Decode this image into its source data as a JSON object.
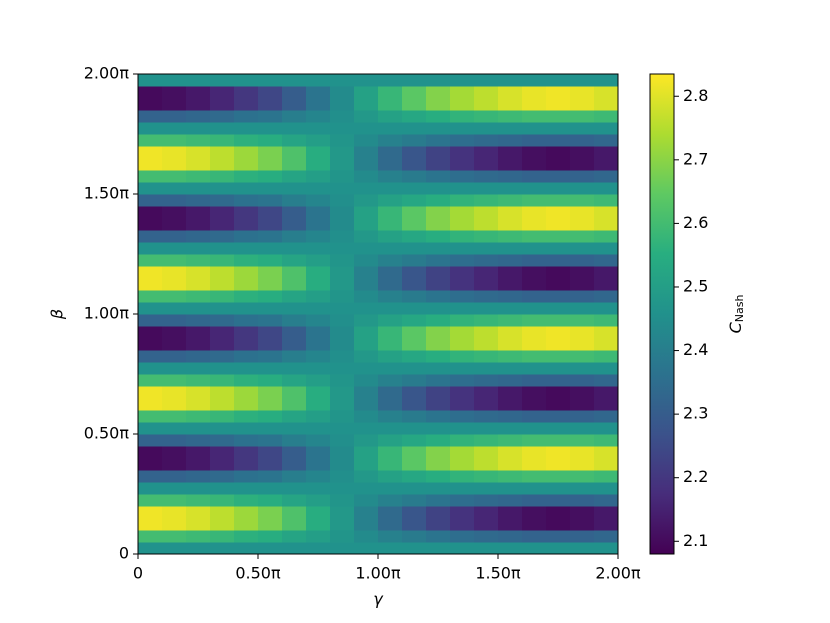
{
  "chart_data": {
    "type": "heatmap",
    "colormap": "viridis",
    "xlabel": "γ",
    "ylabel": "β",
    "colorbar_label": "C",
    "colorbar_label_sub": "Nash",
    "xlim": [
      0,
      2
    ],
    "ylim": [
      0,
      2
    ],
    "xticks": [
      {
        "value": 0,
        "label": "0"
      },
      {
        "value": 0.5,
        "label": "0.50π"
      },
      {
        "value": 1,
        "label": "1.00π"
      },
      {
        "value": 1.5,
        "label": "1.50π"
      },
      {
        "value": 2,
        "label": "2.00π"
      }
    ],
    "yticks": [
      {
        "value": 0,
        "label": "0"
      },
      {
        "value": 0.5,
        "label": "0.50π"
      },
      {
        "value": 1,
        "label": "1.00π"
      },
      {
        "value": 1.5,
        "label": "1.50π"
      },
      {
        "value": 2,
        "label": "2.00π"
      }
    ],
    "zlim": [
      2.08,
      2.835
    ],
    "zticks": [
      2.1,
      2.2,
      2.3,
      2.4,
      2.5,
      2.6,
      2.7,
      2.8
    ],
    "z": [
      [
        2.46,
        2.46,
        2.46,
        2.46,
        2.46,
        2.46,
        2.46,
        2.46,
        2.46,
        2.46,
        2.46,
        2.46,
        2.46,
        2.46,
        2.46,
        2.46,
        2.46,
        2.46,
        2.46,
        2.46
      ],
      [
        2.6,
        2.6,
        2.59,
        2.58,
        2.56,
        2.55,
        2.52,
        2.5,
        2.47,
        2.44,
        2.41,
        2.39,
        2.37,
        2.35,
        2.34,
        2.33,
        2.32,
        2.32,
        2.32,
        2.33
      ],
      [
        2.82,
        2.81,
        2.79,
        2.76,
        2.72,
        2.68,
        2.62,
        2.55,
        2.48,
        2.41,
        2.34,
        2.28,
        2.23,
        2.19,
        2.16,
        2.13,
        2.11,
        2.1,
        2.11,
        2.13
      ],
      [
        2.82,
        2.81,
        2.79,
        2.76,
        2.72,
        2.68,
        2.62,
        2.55,
        2.48,
        2.41,
        2.34,
        2.28,
        2.23,
        2.19,
        2.16,
        2.13,
        2.11,
        2.1,
        2.11,
        2.13
      ],
      [
        2.6,
        2.6,
        2.59,
        2.58,
        2.56,
        2.55,
        2.52,
        2.5,
        2.47,
        2.44,
        2.41,
        2.39,
        2.37,
        2.35,
        2.34,
        2.33,
        2.32,
        2.32,
        2.32,
        2.33
      ],
      [
        2.46,
        2.46,
        2.46,
        2.46,
        2.46,
        2.46,
        2.46,
        2.46,
        2.46,
        2.46,
        2.46,
        2.46,
        2.46,
        2.46,
        2.46,
        2.46,
        2.46,
        2.46,
        2.46,
        2.46
      ],
      [
        2.32,
        2.32,
        2.33,
        2.34,
        2.36,
        2.37,
        2.4,
        2.42,
        2.45,
        2.48,
        2.51,
        2.53,
        2.55,
        2.57,
        2.58,
        2.59,
        2.6,
        2.6,
        2.6,
        2.59
      ],
      [
        2.1,
        2.11,
        2.13,
        2.16,
        2.2,
        2.24,
        2.3,
        2.37,
        2.44,
        2.51,
        2.58,
        2.64,
        2.69,
        2.73,
        2.76,
        2.79,
        2.81,
        2.82,
        2.81,
        2.79
      ],
      [
        2.1,
        2.11,
        2.13,
        2.16,
        2.2,
        2.24,
        2.3,
        2.37,
        2.44,
        2.51,
        2.58,
        2.64,
        2.69,
        2.73,
        2.76,
        2.79,
        2.81,
        2.82,
        2.81,
        2.79
      ],
      [
        2.32,
        2.32,
        2.33,
        2.34,
        2.36,
        2.37,
        2.4,
        2.42,
        2.45,
        2.48,
        2.51,
        2.53,
        2.55,
        2.57,
        2.58,
        2.59,
        2.6,
        2.6,
        2.6,
        2.59
      ],
      [
        2.46,
        2.46,
        2.46,
        2.46,
        2.46,
        2.46,
        2.46,
        2.46,
        2.46,
        2.46,
        2.46,
        2.46,
        2.46,
        2.46,
        2.46,
        2.46,
        2.46,
        2.46,
        2.46,
        2.46
      ],
      [
        2.6,
        2.6,
        2.59,
        2.58,
        2.56,
        2.55,
        2.52,
        2.5,
        2.47,
        2.44,
        2.41,
        2.39,
        2.37,
        2.35,
        2.34,
        2.33,
        2.32,
        2.32,
        2.32,
        2.33
      ],
      [
        2.82,
        2.81,
        2.79,
        2.76,
        2.72,
        2.68,
        2.62,
        2.55,
        2.48,
        2.41,
        2.34,
        2.28,
        2.23,
        2.19,
        2.16,
        2.13,
        2.11,
        2.1,
        2.11,
        2.13
      ],
      [
        2.82,
        2.81,
        2.79,
        2.76,
        2.72,
        2.68,
        2.62,
        2.55,
        2.48,
        2.41,
        2.34,
        2.28,
        2.23,
        2.19,
        2.16,
        2.13,
        2.11,
        2.1,
        2.11,
        2.13
      ],
      [
        2.6,
        2.6,
        2.59,
        2.58,
        2.56,
        2.55,
        2.52,
        2.5,
        2.47,
        2.44,
        2.41,
        2.39,
        2.37,
        2.35,
        2.34,
        2.33,
        2.32,
        2.32,
        2.32,
        2.33
      ],
      [
        2.46,
        2.46,
        2.46,
        2.46,
        2.46,
        2.46,
        2.46,
        2.46,
        2.46,
        2.46,
        2.46,
        2.46,
        2.46,
        2.46,
        2.46,
        2.46,
        2.46,
        2.46,
        2.46,
        2.46
      ],
      [
        2.32,
        2.32,
        2.33,
        2.34,
        2.36,
        2.37,
        2.4,
        2.42,
        2.45,
        2.48,
        2.51,
        2.53,
        2.55,
        2.57,
        2.58,
        2.59,
        2.6,
        2.6,
        2.6,
        2.59
      ],
      [
        2.1,
        2.11,
        2.13,
        2.16,
        2.2,
        2.24,
        2.3,
        2.37,
        2.44,
        2.51,
        2.58,
        2.64,
        2.69,
        2.73,
        2.76,
        2.79,
        2.81,
        2.82,
        2.81,
        2.79
      ],
      [
        2.1,
        2.11,
        2.13,
        2.16,
        2.2,
        2.24,
        2.3,
        2.37,
        2.44,
        2.51,
        2.58,
        2.64,
        2.69,
        2.73,
        2.76,
        2.79,
        2.81,
        2.82,
        2.81,
        2.79
      ],
      [
        2.32,
        2.32,
        2.33,
        2.34,
        2.36,
        2.37,
        2.4,
        2.42,
        2.45,
        2.48,
        2.51,
        2.53,
        2.55,
        2.57,
        2.58,
        2.59,
        2.6,
        2.6,
        2.6,
        2.59
      ],
      [
        2.46,
        2.46,
        2.46,
        2.46,
        2.46,
        2.46,
        2.46,
        2.46,
        2.46,
        2.46,
        2.46,
        2.46,
        2.46,
        2.46,
        2.46,
        2.46,
        2.46,
        2.46,
        2.46,
        2.46
      ],
      [
        2.6,
        2.6,
        2.59,
        2.58,
        2.56,
        2.55,
        2.52,
        2.5,
        2.47,
        2.44,
        2.41,
        2.39,
        2.37,
        2.35,
        2.34,
        2.33,
        2.32,
        2.32,
        2.32,
        2.33
      ],
      [
        2.82,
        2.81,
        2.79,
        2.76,
        2.72,
        2.68,
        2.62,
        2.55,
        2.48,
        2.41,
        2.34,
        2.28,
        2.23,
        2.19,
        2.16,
        2.13,
        2.11,
        2.1,
        2.11,
        2.13
      ],
      [
        2.82,
        2.81,
        2.79,
        2.76,
        2.72,
        2.68,
        2.62,
        2.55,
        2.48,
        2.41,
        2.34,
        2.28,
        2.23,
        2.19,
        2.16,
        2.13,
        2.11,
        2.1,
        2.11,
        2.13
      ],
      [
        2.6,
        2.6,
        2.59,
        2.58,
        2.56,
        2.55,
        2.52,
        2.5,
        2.47,
        2.44,
        2.41,
        2.39,
        2.37,
        2.35,
        2.34,
        2.33,
        2.32,
        2.32,
        2.32,
        2.33
      ],
      [
        2.46,
        2.46,
        2.46,
        2.46,
        2.46,
        2.46,
        2.46,
        2.46,
        2.46,
        2.46,
        2.46,
        2.46,
        2.46,
        2.46,
        2.46,
        2.46,
        2.46,
        2.46,
        2.46,
        2.46
      ],
      [
        2.32,
        2.32,
        2.33,
        2.34,
        2.36,
        2.37,
        2.4,
        2.42,
        2.45,
        2.48,
        2.51,
        2.53,
        2.55,
        2.57,
        2.58,
        2.59,
        2.6,
        2.6,
        2.6,
        2.59
      ],
      [
        2.1,
        2.11,
        2.13,
        2.16,
        2.2,
        2.24,
        2.3,
        2.37,
        2.44,
        2.51,
        2.58,
        2.64,
        2.69,
        2.73,
        2.76,
        2.79,
        2.81,
        2.82,
        2.81,
        2.79
      ],
      [
        2.1,
        2.11,
        2.13,
        2.16,
        2.2,
        2.24,
        2.3,
        2.37,
        2.44,
        2.51,
        2.58,
        2.64,
        2.69,
        2.73,
        2.76,
        2.79,
        2.81,
        2.82,
        2.81,
        2.79
      ],
      [
        2.32,
        2.32,
        2.33,
        2.34,
        2.36,
        2.37,
        2.4,
        2.42,
        2.45,
        2.48,
        2.51,
        2.53,
        2.55,
        2.57,
        2.58,
        2.59,
        2.6,
        2.6,
        2.6,
        2.59
      ],
      [
        2.46,
        2.46,
        2.46,
        2.46,
        2.46,
        2.46,
        2.46,
        2.46,
        2.46,
        2.46,
        2.46,
        2.46,
        2.46,
        2.46,
        2.46,
        2.46,
        2.46,
        2.46,
        2.46,
        2.46
      ],
      [
        2.6,
        2.6,
        2.59,
        2.58,
        2.56,
        2.55,
        2.52,
        2.5,
        2.47,
        2.44,
        2.41,
        2.39,
        2.37,
        2.35,
        2.34,
        2.33,
        2.32,
        2.32,
        2.32,
        2.33
      ],
      [
        2.82,
        2.81,
        2.79,
        2.76,
        2.72,
        2.68,
        2.62,
        2.55,
        2.48,
        2.41,
        2.34,
        2.28,
        2.23,
        2.19,
        2.16,
        2.13,
        2.11,
        2.1,
        2.11,
        2.13
      ],
      [
        2.82,
        2.81,
        2.79,
        2.76,
        2.72,
        2.68,
        2.62,
        2.55,
        2.48,
        2.41,
        2.34,
        2.28,
        2.23,
        2.19,
        2.16,
        2.13,
        2.11,
        2.1,
        2.11,
        2.13
      ],
      [
        2.6,
        2.6,
        2.59,
        2.58,
        2.56,
        2.55,
        2.52,
        2.5,
        2.47,
        2.44,
        2.41,
        2.39,
        2.37,
        2.35,
        2.34,
        2.33,
        2.32,
        2.32,
        2.32,
        2.33
      ],
      [
        2.46,
        2.46,
        2.46,
        2.46,
        2.46,
        2.46,
        2.46,
        2.46,
        2.46,
        2.46,
        2.46,
        2.46,
        2.46,
        2.46,
        2.46,
        2.46,
        2.46,
        2.46,
        2.46,
        2.46
      ],
      [
        2.32,
        2.32,
        2.33,
        2.34,
        2.36,
        2.37,
        2.4,
        2.42,
        2.45,
        2.48,
        2.51,
        2.53,
        2.55,
        2.57,
        2.58,
        2.59,
        2.6,
        2.6,
        2.6,
        2.59
      ],
      [
        2.1,
        2.11,
        2.13,
        2.16,
        2.2,
        2.24,
        2.3,
        2.37,
        2.44,
        2.51,
        2.58,
        2.64,
        2.69,
        2.73,
        2.76,
        2.79,
        2.81,
        2.82,
        2.81,
        2.79
      ],
      [
        2.1,
        2.11,
        2.13,
        2.16,
        2.2,
        2.24,
        2.3,
        2.37,
        2.44,
        2.51,
        2.58,
        2.64,
        2.69,
        2.73,
        2.76,
        2.79,
        2.81,
        2.82,
        2.81,
        2.79
      ],
      [
        2.46,
        2.46,
        2.46,
        2.46,
        2.46,
        2.46,
        2.46,
        2.46,
        2.46,
        2.46,
        2.46,
        2.46,
        2.46,
        2.46,
        2.46,
        2.46,
        2.46,
        2.46,
        2.46,
        2.46
      ]
    ]
  }
}
